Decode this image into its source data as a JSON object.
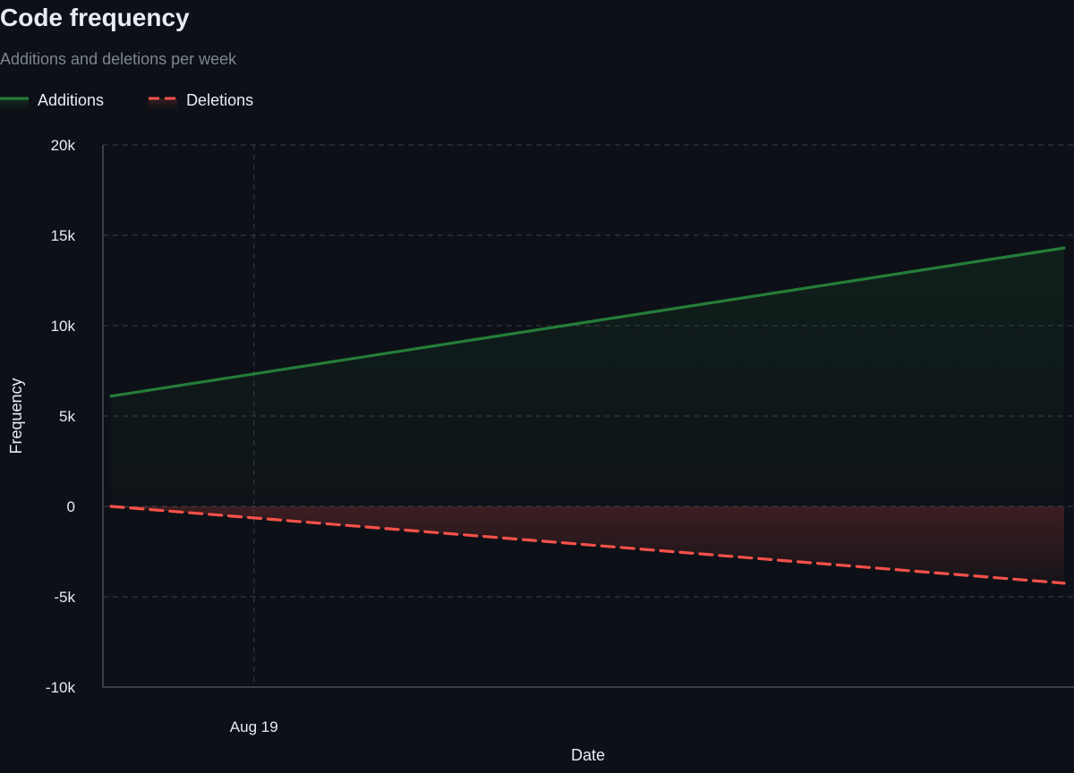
{
  "header": {
    "title": "Code frequency",
    "subtitle": "Additions and deletions per week"
  },
  "colors": {
    "background": "#0d1117",
    "additions": "#2ea043",
    "deletions": "#f85149",
    "grid": "#30363d",
    "text": "#e6edf3",
    "muted": "#7d8590"
  },
  "chart_data": {
    "type": "area",
    "xlabel": "Date",
    "ylabel": "Frequency",
    "ylim": [
      -10000,
      20000
    ],
    "yticks": [
      -10000,
      -5000,
      0,
      5000,
      10000,
      15000,
      20000
    ],
    "ytick_labels": [
      "-10k",
      "-5k",
      "0",
      "5k",
      "10k",
      "15k",
      "20k"
    ],
    "xticks": [
      {
        "label": "Aug 19",
        "position": 0.15
      }
    ],
    "grid": true,
    "legend_placement": "top-left",
    "series": [
      {
        "name": "Additions",
        "line_style": "solid",
        "points": [
          {
            "t": 0.0,
            "y": 6100
          },
          {
            "t": 1.0,
            "y": 14300
          }
        ]
      },
      {
        "name": "Deletions",
        "line_style": "dashed",
        "points": [
          {
            "t": 0.0,
            "y": 0
          },
          {
            "t": 1.0,
            "y": -4250
          }
        ]
      }
    ]
  }
}
